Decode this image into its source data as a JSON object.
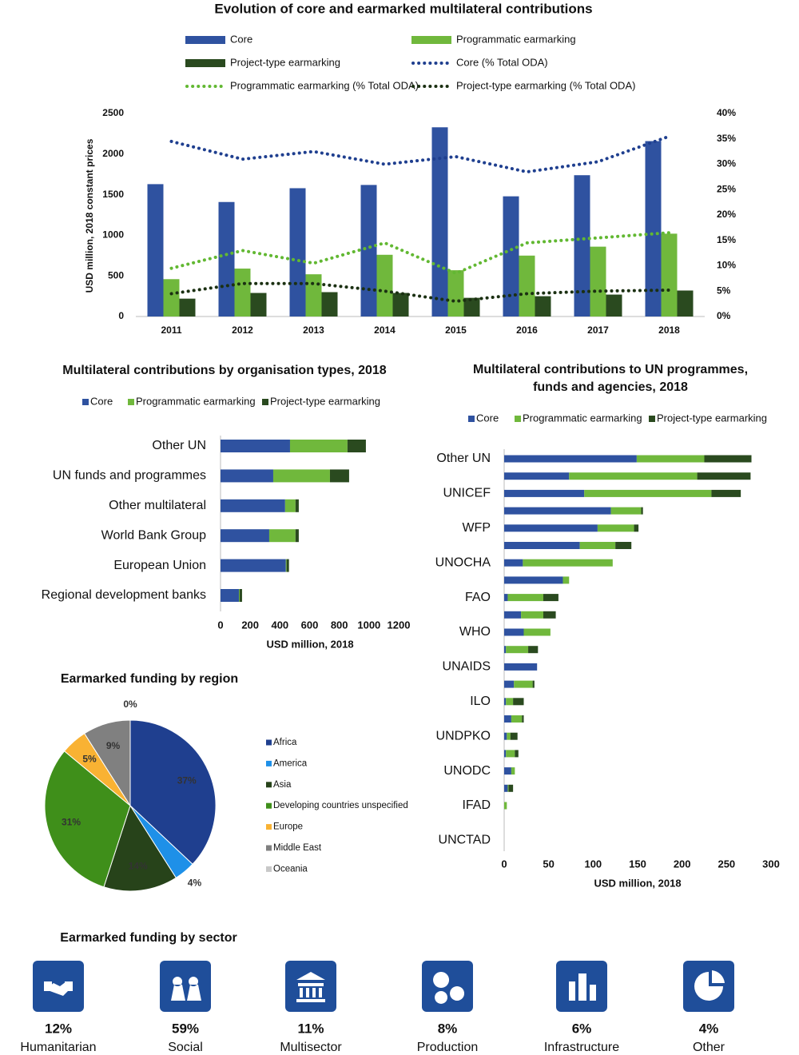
{
  "chart_data": [
    {
      "type": "combo",
      "title": "Evolution of core and earmarked multilateral contributions",
      "ylabel": "USD million, 2018 constant prices",
      "categories": [
        "2011",
        "2012",
        "2013",
        "2014",
        "2015",
        "2016",
        "2017",
        "2018"
      ],
      "series": [
        {
          "name": "Core",
          "type": "bar",
          "color": "#2f52a0",
          "values": [
            1630,
            1410,
            1580,
            1620,
            2330,
            1480,
            1740,
            2160
          ]
        },
        {
          "name": "Programmatic earmarking",
          "type": "bar",
          "color": "#70b83c",
          "values": [
            460,
            590,
            520,
            760,
            570,
            750,
            860,
            1020
          ]
        },
        {
          "name": "Project-type earmarking",
          "type": "bar",
          "color": "#2a4a1f",
          "values": [
            220,
            290,
            300,
            290,
            230,
            250,
            270,
            320
          ]
        },
        {
          "name": "Core (% Total ODA)",
          "type": "line",
          "axis": "y2",
          "color": "#1f3f8f",
          "values": [
            34.5,
            31,
            32.5,
            30,
            31.5,
            28.5,
            30.5,
            35.5
          ]
        },
        {
          "name": "Programmatic earmarking (% Total ODA)",
          "type": "line",
          "axis": "y2",
          "color": "#62b832",
          "values": [
            9.5,
            13,
            10.5,
            14.5,
            8.5,
            14.5,
            15.5,
            16.5
          ]
        },
        {
          "name": "Project-type earmarking (% Total ODA)",
          "type": "line",
          "axis": "y2",
          "color": "#1b3012",
          "values": [
            4.5,
            6.5,
            6.5,
            5,
            3,
            4.5,
            5,
            5.2
          ]
        }
      ],
      "ylim": [
        0,
        2500
      ],
      "yticks": [
        0,
        500,
        1000,
        1500,
        2000,
        2500
      ],
      "y2lim": [
        0,
        40
      ],
      "y2ticks": [
        {
          "value": 0,
          "label": "0%"
        },
        {
          "value": 5,
          "label": "5%"
        },
        {
          "value": 10,
          "label": "10%"
        },
        {
          "value": 15,
          "label": "15%"
        },
        {
          "value": 20,
          "label": "20%"
        },
        {
          "value": 25,
          "label": "25%"
        },
        {
          "value": 30,
          "label": "30%"
        },
        {
          "value": 35,
          "label": "35%"
        },
        {
          "value": 40,
          "label": "40%"
        }
      ]
    },
    {
      "type": "hbar",
      "title": "Multilateral contributions by organisation types, 2018",
      "xlabel": "USD million, 2018",
      "categories": [
        "Other UN",
        "UN funds and programmes",
        "Other multilateral",
        "World Bank Group",
        "European Union",
        "Regional development banks"
      ],
      "series": [
        {
          "name": "Core",
          "color": "#2f52a0",
          "values": [
            468,
            355,
            435,
            328,
            440,
            124
          ]
        },
        {
          "name": "Programmatic earmarking",
          "color": "#70b83c",
          "values": [
            387,
            382,
            70,
            177,
            5,
            5
          ]
        },
        {
          "name": "Project-type earmarking",
          "color": "#2a4a1f",
          "values": [
            124,
            129,
            22,
            22,
            16,
            16
          ]
        }
      ],
      "xlim": [
        0,
        1200
      ],
      "xticks": [
        0,
        200,
        400,
        600,
        800,
        1000,
        1200
      ]
    },
    {
      "type": "hbar",
      "title": "Multilateral contributions to UN programmes, funds and agencies, 2018",
      "xlabel": "USD million, 2018",
      "categories": [
        "Other UN",
        null,
        "UNICEF",
        null,
        "WFP",
        null,
        "UNOCHA",
        null,
        "FAO",
        null,
        "WHO",
        null,
        "UNAIDS",
        null,
        "ILO",
        null,
        "UNDPKO",
        null,
        "UNODC",
        null,
        "IFAD",
        null,
        "UNCTAD"
      ],
      "series": [
        {
          "name": "Core",
          "color": "#2f52a0",
          "values": [
            149,
            73,
            90,
            120,
            105,
            85,
            21,
            66,
            4,
            19,
            22,
            2,
            37,
            11,
            2,
            8,
            3,
            2,
            8,
            4,
            0,
            0,
            0
          ]
        },
        {
          "name": "Programmatic earmarking",
          "color": "#70b83c",
          "values": [
            76,
            144,
            143,
            34,
            41,
            40,
            101,
            7,
            40,
            25,
            30,
            25,
            0,
            21,
            8,
            12,
            4,
            10,
            4,
            1,
            3,
            0,
            0
          ]
        },
        {
          "name": "Project-type earmarking",
          "color": "#2a4a1f",
          "values": [
            53,
            60,
            33,
            2,
            5,
            18,
            0,
            0,
            17,
            14,
            0,
            11,
            0,
            2,
            12,
            2,
            8,
            4,
            0,
            5,
            0,
            0,
            0
          ]
        }
      ],
      "xlim": [
        0,
        300
      ],
      "xticks": [
        0,
        50,
        100,
        150,
        200,
        250,
        300
      ]
    },
    {
      "type": "pie",
      "title": "Earmarked funding by region",
      "categories": [
        "Africa",
        "America",
        "Asia",
        "Developing countries unspecified",
        "Europe",
        "Middle East",
        "Oceania"
      ],
      "values": [
        37,
        4,
        14,
        31,
        5,
        9,
        0
      ],
      "value_labels": [
        "37%",
        "4%",
        "14%",
        "31%",
        "5%",
        "9%",
        "0%"
      ],
      "colors": [
        "#1f3f8f",
        "#1e90e8",
        "#27431a",
        "#3f8f1a",
        "#f9b233",
        "#808080",
        "#c8c8c8"
      ]
    },
    {
      "type": "stat",
      "title": "Earmarked funding by sector",
      "categories": [
        "Humanitarian",
        "Social",
        "Multisector",
        "Production",
        "Infrastructure",
        "Other"
      ],
      "values": [
        12,
        59,
        11,
        8,
        6,
        4
      ],
      "value_labels": [
        "12%",
        "59%",
        "11%",
        "8%",
        "6%",
        "4%"
      ],
      "color": "#1f4e9a"
    }
  ]
}
